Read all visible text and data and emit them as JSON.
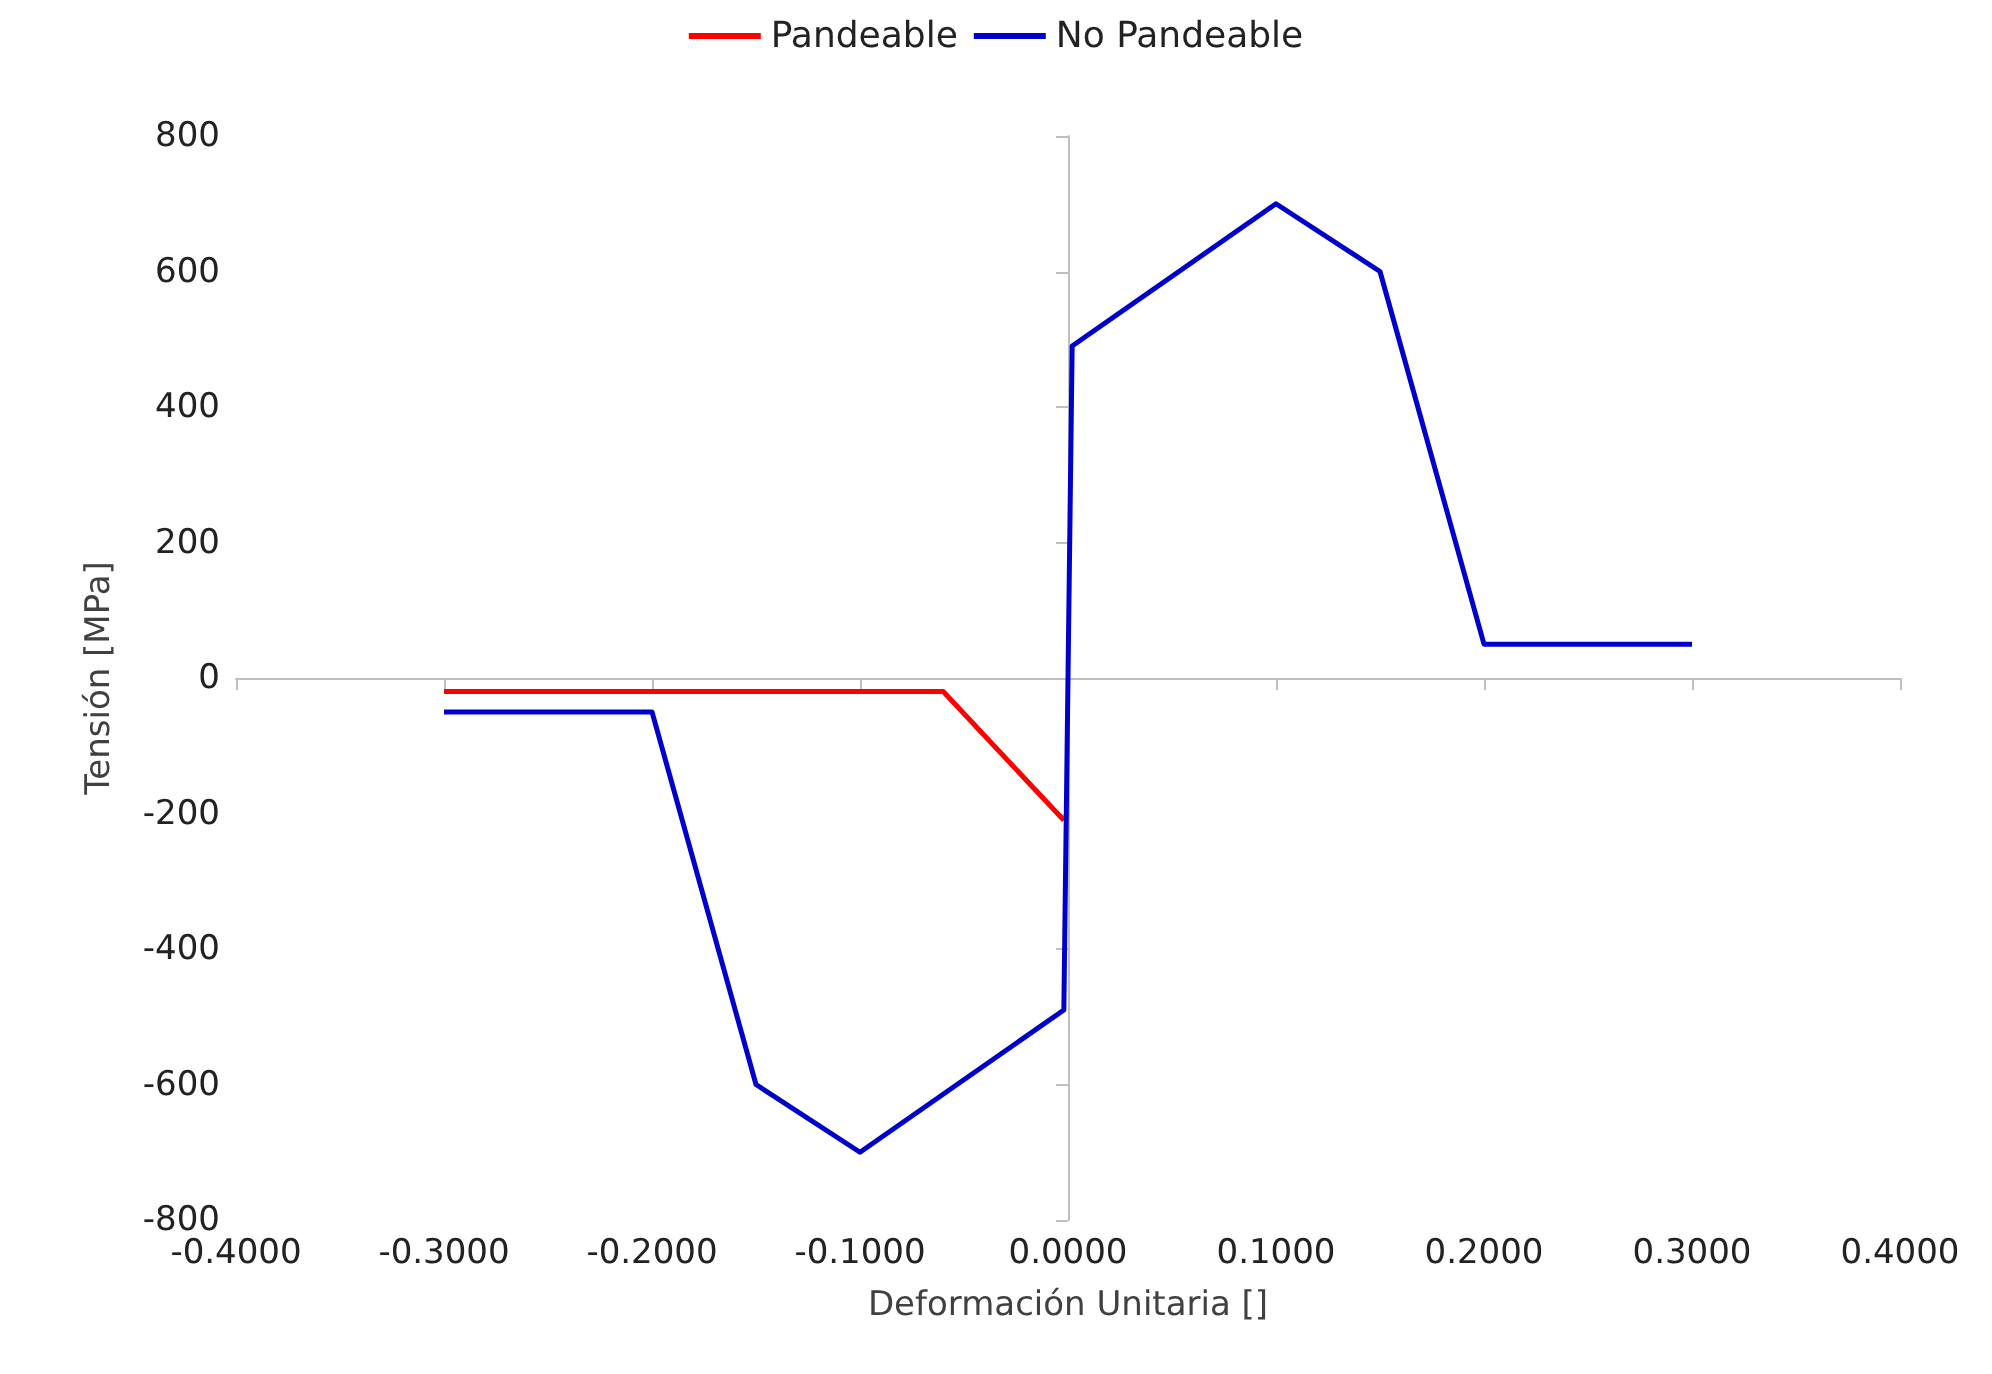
{
  "chart_data": {
    "type": "line",
    "xlabel": "Deformación Unitaria []",
    "ylabel": "Tensión [MPa]",
    "xlim": [
      -0.4,
      0.4
    ],
    "xticks": [
      {
        "value": -0.4,
        "label": "-0.4000"
      },
      {
        "value": -0.3,
        "label": "-0.3000"
      },
      {
        "value": -0.2,
        "label": "-0.2000"
      },
      {
        "value": -0.1,
        "label": "-0.1000"
      },
      {
        "value": 0,
        "label": "0.0000"
      },
      {
        "value": 0.1,
        "label": "0.1000"
      },
      {
        "value": 0.2,
        "label": "0.2000"
      },
      {
        "value": 0.3,
        "label": "0.3000"
      },
      {
        "value": 0.4,
        "label": "0.4000"
      }
    ],
    "ylim": [
      -800,
      800
    ],
    "yticks": [
      -800,
      -600,
      -400,
      -200,
      0,
      200,
      400,
      600,
      800
    ],
    "series": [
      {
        "name": "Pandeable",
        "color": "#ff0000",
        "x": [
          -0.3,
          -0.06,
          -0.002
        ],
        "values": [
          -20,
          -20,
          -210
        ]
      },
      {
        "name": "No Pandeable",
        "color": "#0000cc",
        "x": [
          -0.3,
          -0.2,
          -0.15,
          -0.1,
          -0.002,
          0.002,
          0.1,
          0.15,
          0.2,
          0.3
        ],
        "values": [
          -50,
          -50,
          -600,
          -700,
          -490,
          490,
          700,
          600,
          50,
          50
        ]
      }
    ],
    "legend": "top",
    "marker": "none",
    "line_style": "solid"
  }
}
